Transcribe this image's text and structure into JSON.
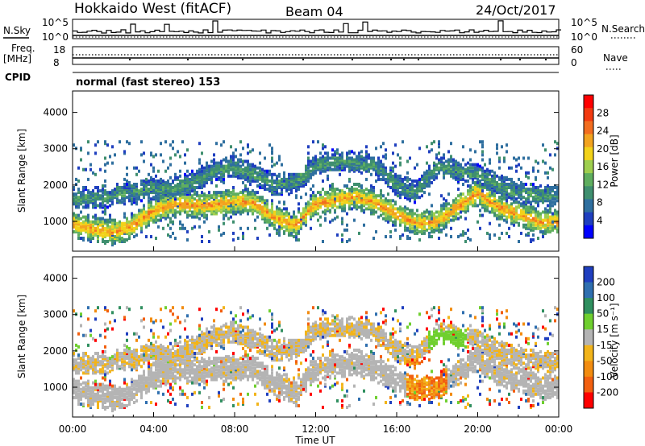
{
  "header": {
    "title": "Hokkaido West (fitACF)",
    "beam": "Beam 04",
    "date": "24/Oct/2017"
  },
  "strip_panels": {
    "n_sky_label": "N.Sky",
    "n_sky_ticks": [
      "10^5",
      "10^0"
    ],
    "n_search_label": "N.Search",
    "n_search_ticks": [
      "10^5",
      "10^0"
    ],
    "freq_label": "Freq.",
    "freq_unit": "[MHz]",
    "freq_ticks": [
      "18",
      "8"
    ],
    "nave_label": "Nave",
    "nave_ticks": [
      "60",
      "0"
    ],
    "cpid_label": "CPID",
    "cpid_value": "normal (fast stereo) 153"
  },
  "chart_data": [
    {
      "type": "heatmap",
      "name": "power",
      "ylabel": "Slant Range [km]",
      "xlabel": "",
      "ylim": [
        180,
        4590
      ],
      "xlim": [
        0,
        24
      ],
      "yticks": [
        "1000",
        "2000",
        "3000",
        "4000"
      ],
      "ytick_values": [
        1000,
        2000,
        3000,
        4000
      ],
      "colorbar": {
        "label": "Power [dB]",
        "ticks": [
          "4",
          "8",
          "12",
          "16",
          "20",
          "24",
          "28"
        ],
        "colors": [
          "#0000ff",
          "#1f3fbf",
          "#2f6f9f",
          "#3f8f6f",
          "#5fae5f",
          "#9fcf4f",
          "#f2d21a",
          "#f2a31f",
          "#f26d1f",
          "#f23a10",
          "#ff0000"
        ]
      },
      "bands": [
        {
          "t0": 0,
          "t1": 24,
          "r_center": [
            900,
            800,
            700,
            900,
            1300,
            1500,
            1450,
            1450,
            1550,
            1500,
            1100,
            900,
            1500,
            1600,
            1700,
            1500,
            1200,
            950,
            1000,
            1400,
            1800,
            1400,
            1200,
            1000,
            1000
          ],
          "width": 350,
          "power": 22
        },
        {
          "t0": 0,
          "t1": 24,
          "r_center": [
            1600,
            1650,
            1700,
            1800,
            1900,
            1900,
            2100,
            2400,
            2500,
            2300,
            2000,
            2100,
            2500,
            2700,
            2600,
            2500,
            2000,
            1800,
            2500,
            2400,
            2300,
            2000,
            1800,
            1700,
            1700
          ],
          "width": 300,
          "power": 10
        }
      ]
    },
    {
      "type": "heatmap",
      "name": "velocity",
      "ylabel": "Slant Range [km]",
      "xlabel": "Time UT",
      "ylim": [
        180,
        4590
      ],
      "xlim": [
        0,
        24
      ],
      "yticks": [
        "1000",
        "2000",
        "3000",
        "4000"
      ],
      "ytick_values": [
        1000,
        2000,
        3000,
        4000
      ],
      "xticks": [
        "00:00",
        "04:00",
        "08:00",
        "12:00",
        "16:00",
        "20:00",
        "00:00"
      ],
      "xtick_values": [
        0,
        4,
        8,
        12,
        16,
        20,
        24
      ],
      "colorbar": {
        "label": "Velocity [m s⁻¹]",
        "ticks": [
          "200",
          "100",
          "50",
          "15",
          "-15",
          "-50",
          "-100",
          "-200"
        ],
        "colors": [
          "#1f3fbf",
          "#2f6faf",
          "#2f8f5f",
          "#6fcf2f",
          "#b4b4b4",
          "#f2b41a",
          "#f28c10",
          "#f26010",
          "#ff0000"
        ]
      },
      "features": [
        {
          "label": "ground scatter",
          "value": 0
        },
        {
          "label": "receding flow",
          "value": -60,
          "t": [
            16.5,
            18.5
          ],
          "r": [
            600,
            1800
          ]
        },
        {
          "label": "approaching flow",
          "value": 40,
          "t": [
            17.5,
            19.5
          ],
          "r": [
            1800,
            2600
          ]
        }
      ]
    }
  ],
  "colors": {
    "frame": "#000000",
    "ground_scatter": "#b4b4b4"
  }
}
